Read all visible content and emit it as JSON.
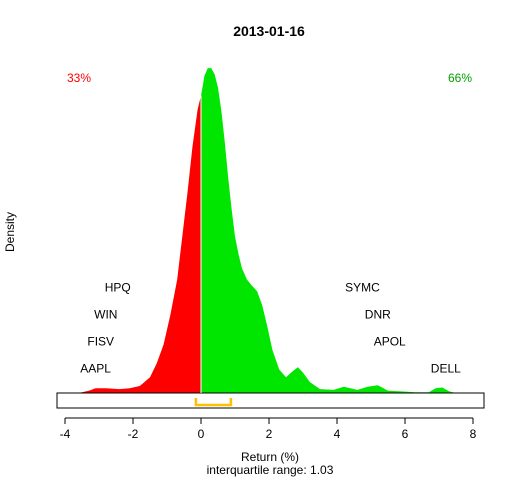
{
  "chart_data": {
    "type": "area",
    "title": "2013-01-16",
    "xlabel": "Return (%)",
    "ylabel": "Density",
    "subtitle": "interquartile range: 1.03",
    "xlim": [
      -4,
      8
    ],
    "x_ticks": [
      "-4",
      "-2",
      "0",
      "2",
      "4",
      "6",
      "8"
    ],
    "left_share": "33%",
    "right_share": "66%",
    "colors": {
      "negative": "#ff0000",
      "positive": "#00e600",
      "iqr": "#ffc000",
      "left_share": "#ff0000",
      "right_share": "#00a000"
    },
    "iqr": [
      -0.15,
      0.88
    ],
    "density": {
      "x": [
        -3.6,
        -3.3,
        -3.1,
        -2.8,
        -2.4,
        -2.1,
        -1.8,
        -1.5,
        -1.3,
        -1.1,
        -0.9,
        -0.7,
        -0.55,
        -0.4,
        -0.25,
        -0.1,
        0.0,
        0.05,
        0.1,
        0.2,
        0.3,
        0.4,
        0.5,
        0.6,
        0.7,
        0.8,
        0.9,
        1.0,
        1.1,
        1.2,
        1.35,
        1.5,
        1.65,
        1.8,
        1.95,
        2.1,
        2.3,
        2.5,
        2.7,
        2.85,
        3.0,
        3.2,
        3.5,
        3.9,
        4.2,
        4.6,
        4.9,
        5.2,
        5.5,
        5.9,
        6.3,
        6.7,
        6.9,
        7.1,
        7.3,
        7.5
      ],
      "y": [
        0.0,
        0.03,
        0.06,
        0.06,
        0.05,
        0.06,
        0.09,
        0.2,
        0.38,
        0.62,
        1.0,
        1.45,
        2.0,
        2.55,
        3.15,
        3.62,
        3.8,
        3.92,
        4.05,
        4.15,
        4.15,
        4.07,
        3.9,
        3.6,
        3.2,
        2.75,
        2.35,
        2.0,
        1.78,
        1.6,
        1.45,
        1.37,
        1.3,
        1.12,
        0.85,
        0.55,
        0.3,
        0.2,
        0.28,
        0.33,
        0.26,
        0.14,
        0.05,
        0.04,
        0.08,
        0.04,
        0.08,
        0.1,
        0.03,
        0.02,
        0.01,
        0.01,
        0.06,
        0.07,
        0.02,
        0.0
      ]
    },
    "annotations": [
      {
        "text": "HPQ",
        "x": -2.45,
        "y": 1.35
      },
      {
        "text": "WIN",
        "x": -2.8,
        "y": 1.0
      },
      {
        "text": "FISV",
        "x": -2.95,
        "y": 0.66
      },
      {
        "text": "AAPL",
        "x": -3.1,
        "y": 0.31
      },
      {
        "text": "SYMC",
        "x": 4.75,
        "y": 1.35
      },
      {
        "text": "DNR",
        "x": 5.2,
        "y": 1.0
      },
      {
        "text": "APOL",
        "x": 5.55,
        "y": 0.66
      },
      {
        "text": "DELL",
        "x": 7.2,
        "y": 0.31
      }
    ]
  }
}
